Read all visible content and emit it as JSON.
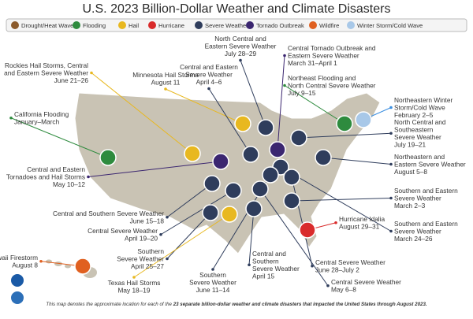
{
  "title": "U.S. 2023 Billion-Dollar Weather and Climate Disasters",
  "legend": [
    "Drought/Heat Wave",
    "Flooding",
    "Hail",
    "Hurricane",
    "Severe Weather",
    "Tornado Outbreak",
    "Wildfire",
    "Winter Storm/Cold Wave"
  ],
  "callouts": [
    {
      "lines": [
        "Rockies Hail Storms, Central",
        "and Eastern Severe Weather"
      ],
      "date": "June 21–26"
    },
    {
      "lines": [
        "Minnesota Hail Storms"
      ],
      "date": "August 11"
    },
    {
      "lines": [
        "Central and Eastern",
        "Severe Weather"
      ],
      "date": "April 4–6"
    },
    {
      "lines": [
        "North Central and",
        "Eastern Severe Weather"
      ],
      "date": "July 28–29"
    },
    {
      "lines": [
        "Central Tornado Outbreak and",
        "Eastern Severe Weather"
      ],
      "date": "March 31–April 1"
    },
    {
      "lines": [
        "Northeast Flooding and",
        "North Central Severe Weather"
      ],
      "date": "July 9–15"
    },
    {
      "lines": [
        "Northeastern Winter",
        "Storm/Cold Wave"
      ],
      "date": "February 2–5"
    },
    {
      "lines": [
        "California Flooding"
      ],
      "date": "January–March"
    },
    {
      "lines": [
        "North Central and",
        "Southeastern",
        "Severe Weather"
      ],
      "date": "July 19–21"
    },
    {
      "lines": [
        "Northeastern and",
        "Eastern Severe Weather"
      ],
      "date": "August 5–8"
    },
    {
      "lines": [
        "Central and Eastern",
        "Tornadoes and Hail Storms"
      ],
      "date": "May 10–12"
    },
    {
      "lines": [
        "Southern and Eastern",
        "Severe Weather"
      ],
      "date": "March 2–3"
    },
    {
      "lines": [
        "Central and Southern Severe Weather"
      ],
      "date": "June 15–18"
    },
    {
      "lines": [
        "Central Severe Weather"
      ],
      "date": "April 19–20"
    },
    {
      "lines": [
        "Southern and Eastern",
        "Severe Weather"
      ],
      "date": "March 24–26"
    },
    {
      "lines": [
        "Southern",
        "Severe Weather"
      ],
      "date": "April 25–27"
    },
    {
      "lines": [
        "Hurricane Idalia"
      ],
      "date": "August 29–31"
    },
    {
      "lines": [
        "Central and",
        "Southern",
        "Severe Weather"
      ],
      "date": "April 15"
    },
    {
      "lines": [
        "Hawaii Firestorm"
      ],
      "date": "August 8"
    },
    {
      "lines": [
        "Texas Hail Storms"
      ],
      "date": "May 18–19"
    },
    {
      "lines": [
        "Southern",
        "Severe Weather"
      ],
      "date": "June 11–14"
    },
    {
      "lines": [
        "Central Severe Weather"
      ],
      "date": "June 28–July 2"
    },
    {
      "lines": [
        "Central Severe Weather"
      ],
      "date": "May 6–8"
    }
  ],
  "footer": {
    "text": "This map denotes the approximate location for each of the ",
    "bold": "23 separate billion-dollar weather and climate disasters that impacted the United States through August 2023."
  }
}
